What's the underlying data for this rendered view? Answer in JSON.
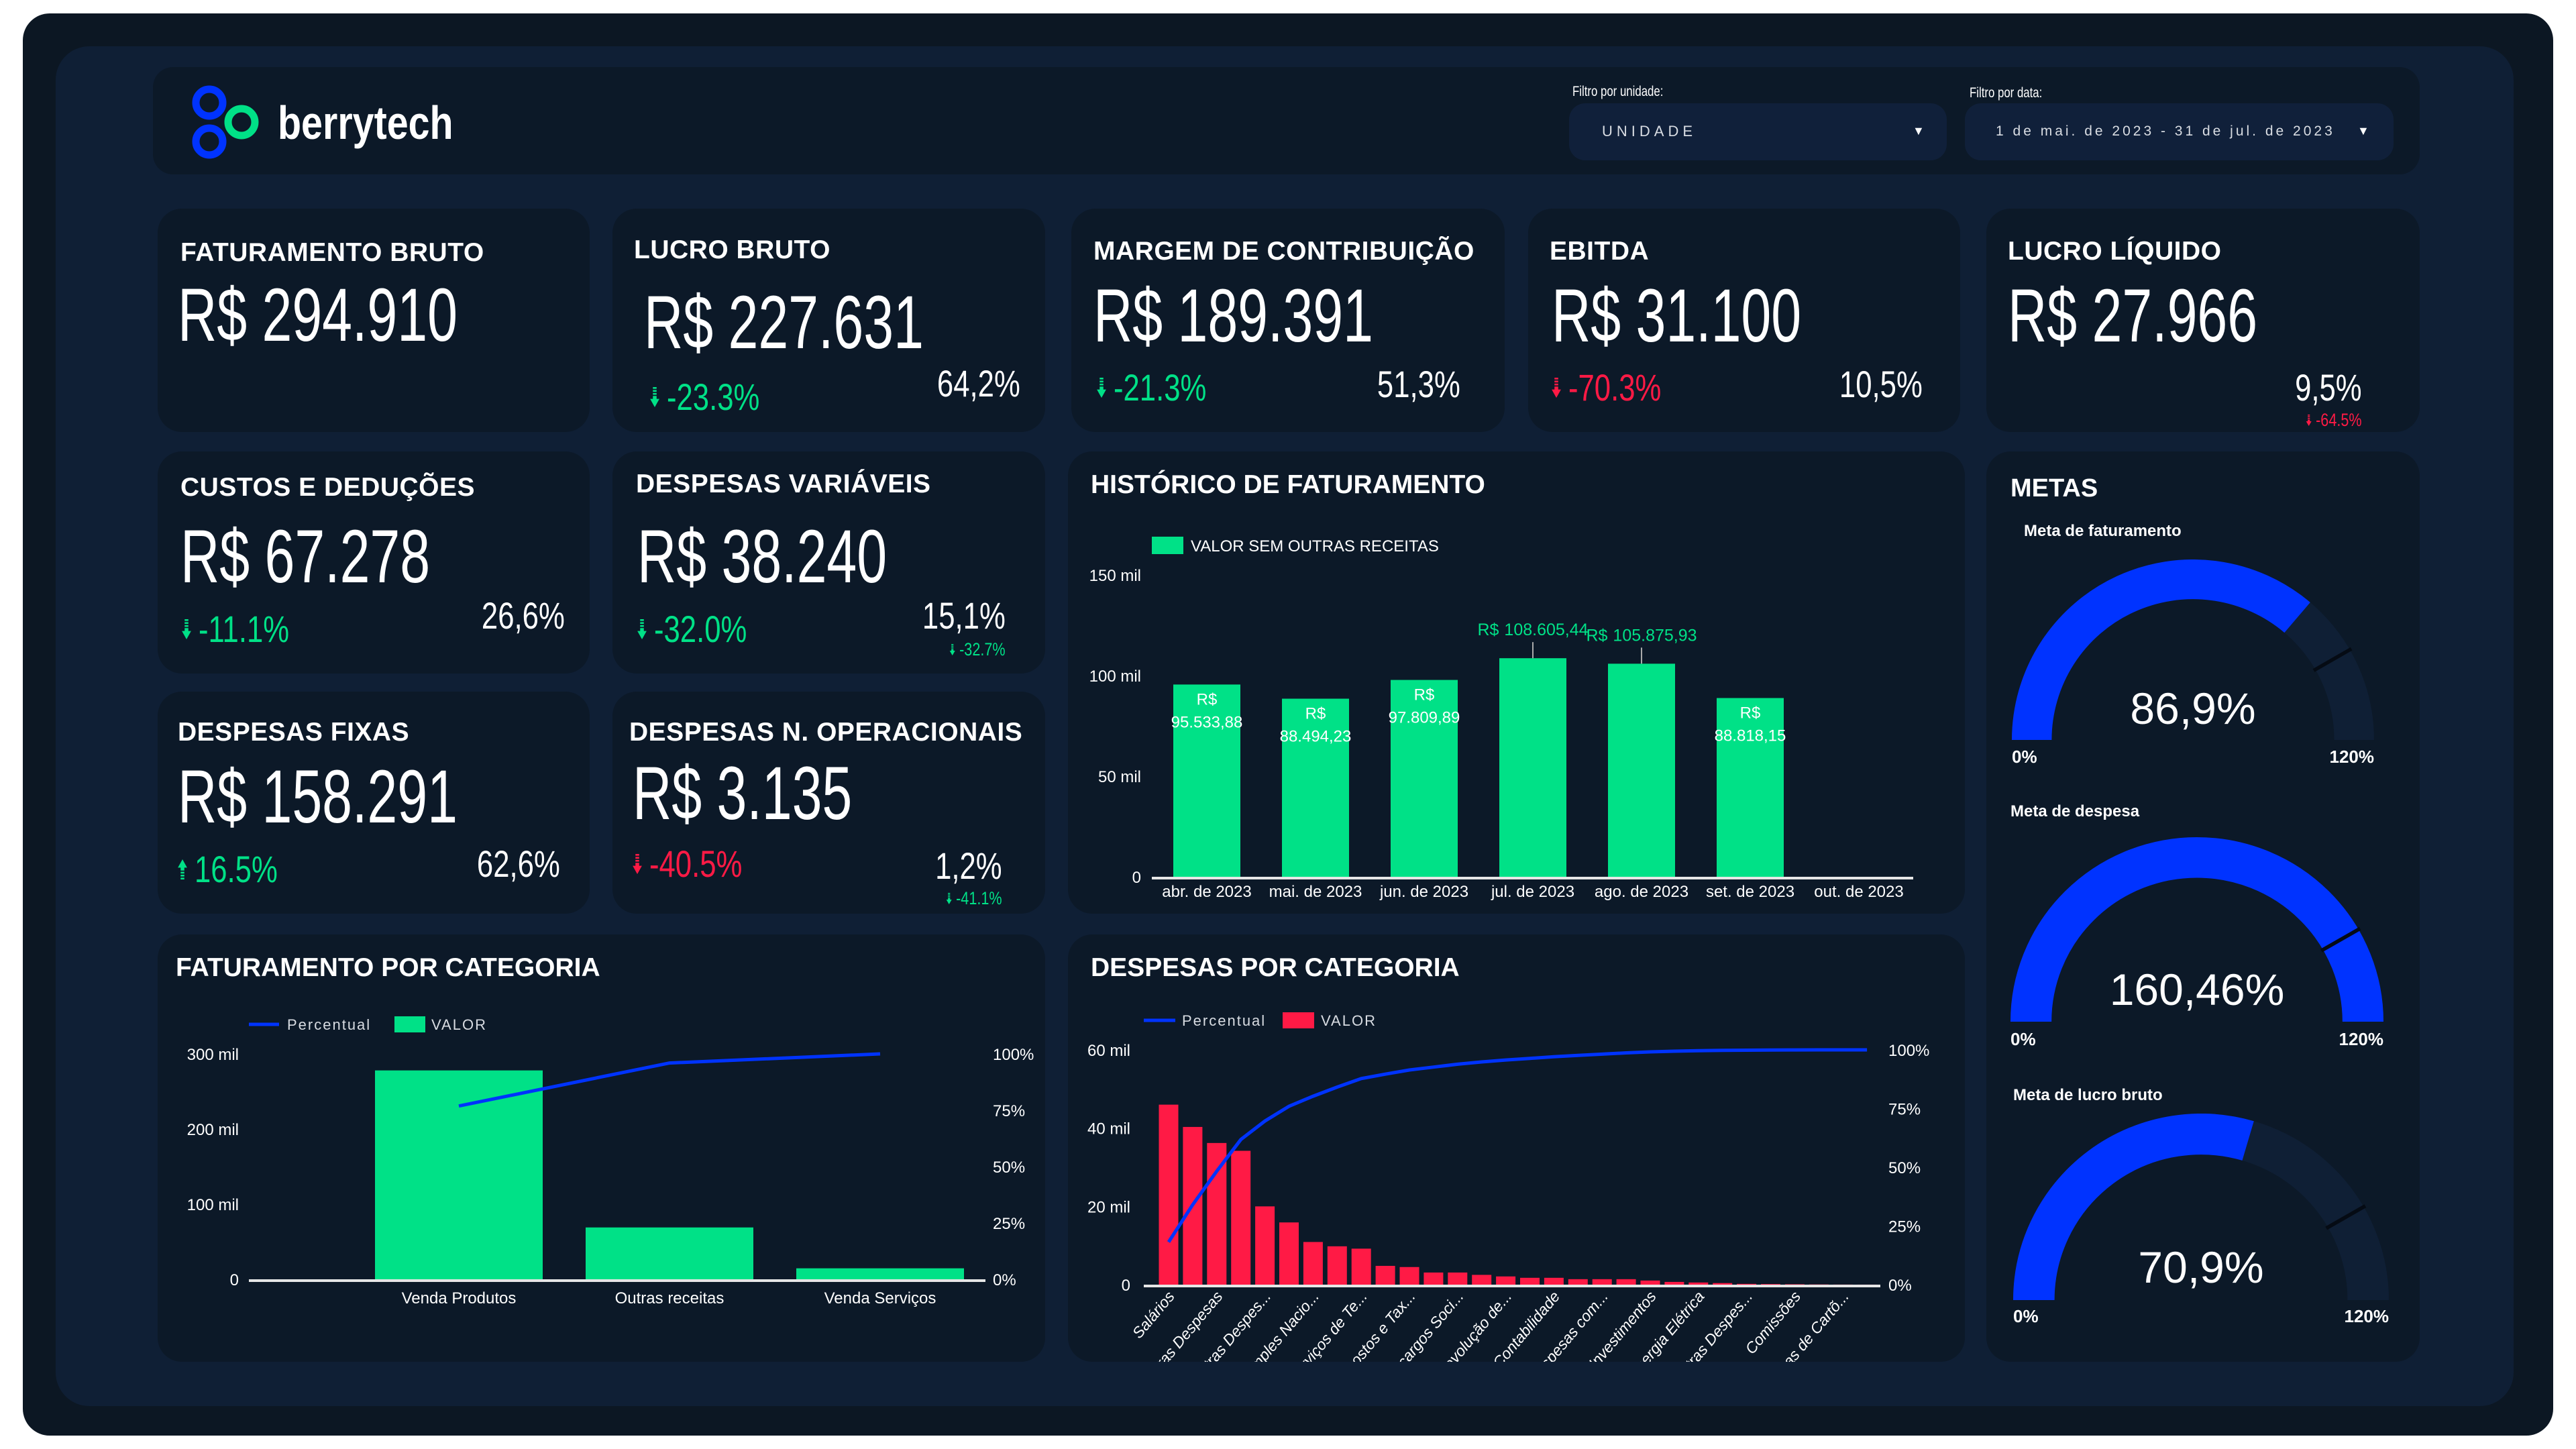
{
  "header": {
    "brand": "berrytech",
    "filters": [
      {
        "label": "Filtro por unidade:",
        "value": "UNIDADE"
      },
      {
        "label": "Filtro por data:",
        "value": "1 de mai. de 2023 - 31 de jul. de 2023"
      }
    ]
  },
  "colors": {
    "green": "#00e187",
    "red": "#ff1a45",
    "blue": "#0033ff",
    "card": "#0c1928",
    "panel": "#0f1f35"
  },
  "kpis": [
    {
      "title": "FATURAMENTO BRUTO",
      "value": "R$ 294.910"
    },
    {
      "title": "LUCRO BRUTO",
      "value": "R$ 227.631",
      "change": {
        "text": "-23.3%",
        "direction": "down",
        "status": "positive"
      },
      "share": "64,2%"
    },
    {
      "title": "MARGEM DE CONTRIBUIÇÃO",
      "value": "R$ 189.391",
      "change": {
        "text": "-21.3%",
        "direction": "down",
        "status": "positive"
      },
      "share": "51,3%"
    },
    {
      "title": "EBITDA",
      "value": "R$ 31.100",
      "change": {
        "text": "-70.3%",
        "direction": "down",
        "status": "negative"
      },
      "share": "10,5%"
    },
    {
      "title": "LUCRO LÍQUIDO",
      "value": "R$ 27.966",
      "share": "9,5%",
      "sub_change": {
        "text": "-64.5%",
        "direction": "down",
        "status": "negative"
      }
    },
    {
      "title": "CUSTOS E DEDUÇÕES",
      "value": "R$ 67.278",
      "change": {
        "text": "-11.1%",
        "direction": "down",
        "status": "positive"
      },
      "share": "26,6%"
    },
    {
      "title": "DESPESAS VARIÁVEIS",
      "value": "R$ 38.240",
      "change": {
        "text": "-32.0%",
        "direction": "down",
        "status": "positive"
      },
      "share": "15,1%",
      "sub_change": {
        "text": "-32.7%",
        "direction": "down",
        "status": "positive"
      }
    },
    {
      "title": "DESPESAS FIXAS",
      "value": "R$ 158.291",
      "change": {
        "text": "16.5%",
        "direction": "up",
        "status": "positive"
      },
      "share": "62,6%"
    },
    {
      "title": "DESPESAS N. OPERACIONAIS",
      "value": "R$ 3.135",
      "change": {
        "text": "-40.5%",
        "direction": "down",
        "status": "negative"
      },
      "share": "1,2%",
      "sub_change": {
        "text": "-41.1%",
        "direction": "down",
        "status": "positive"
      }
    }
  ],
  "chart_data": [
    {
      "type": "bar",
      "title": "HISTÓRICO DE FATURAMENTO",
      "legend": [
        "VALOR SEM OUTRAS RECEITAS"
      ],
      "categories": [
        "abr. de 2023",
        "mai. de 2023",
        "jun. de 2023",
        "jul. de 2023",
        "ago. de 2023",
        "set. de 2023",
        "out. de 2023"
      ],
      "values": [
        95533.88,
        88494.23,
        97809.89,
        108605.44,
        105875.93,
        88818.15,
        0
      ],
      "data_labels": [
        {
          "currency": "R$",
          "amount": "95.533,88"
        },
        {
          "currency": "R$",
          "amount": "88.494,23"
        },
        {
          "currency": "R$",
          "amount": "97.809,89"
        },
        {
          "currency": "R$",
          "amount": "108.605,44"
        },
        {
          "currency": "R$",
          "amount": "105.875,93"
        },
        {
          "currency": "R$",
          "amount": "88.818,15"
        },
        null
      ],
      "ylim": [
        0,
        150000
      ],
      "y_ticks": [
        0,
        50000,
        100000,
        150000
      ],
      "y_tick_labels": [
        "0",
        "50 mil",
        "100 mil",
        "150 mil"
      ],
      "grid": false,
      "legend_position": "top-left"
    },
    {
      "type": "bar",
      "title": "FATURAMENTO POR CATEGORIA",
      "legend": [
        "Percentual",
        "VALOR"
      ],
      "categories": [
        "Venda Produtos",
        "Outras receitas",
        "Venda Serviços"
      ],
      "series": [
        {
          "name": "VALOR",
          "type": "bar",
          "values": [
            278000,
            69000,
            14600
          ]
        },
        {
          "name": "Percentual",
          "type": "line",
          "axis": "right",
          "cumulative_from": "VALOR"
        }
      ],
      "ylim": [
        0,
        300000
      ],
      "y_ticks": [
        0,
        100000,
        200000,
        300000
      ],
      "y_tick_labels": [
        "0",
        "100 mil",
        "200 mil",
        "300 mil"
      ],
      "y2_ticks": [
        0,
        25,
        50,
        75,
        100
      ],
      "y2_tick_labels": [
        "0%",
        "25%",
        "50%",
        "75%",
        "100%"
      ],
      "legend_position": "top-left"
    },
    {
      "type": "bar",
      "title": "DESPESAS POR CATEGORIA",
      "legend": [
        "Percentual",
        "VALOR"
      ],
      "visible_category_labels": [
        "Salários",
        "Outras Despesas",
        "Outras Despes...",
        "Simples Nacio...",
        "Serviços de Te...",
        "Impostos e Tax...",
        "Encargos Soci...",
        "Devolução de...",
        "Contabilidade",
        "Despesas com...",
        "Investimentos",
        "Energia Elétrica",
        "Outras Despes...",
        "Comissões",
        "Taxas de Cartõ..."
      ],
      "series": [
        {
          "name": "VALOR",
          "type": "bar",
          "values": [
            46000,
            40300,
            36200,
            34200,
            20000,
            15900,
            10900,
            9800,
            9200,
            4800,
            4500,
            3100,
            3100,
            2500,
            2100,
            1750,
            1750,
            1400,
            1400,
            1400,
            1050,
            700,
            550,
            400,
            200,
            150,
            100,
            50,
            20,
            10
          ]
        },
        {
          "name": "Percentual",
          "type": "line",
          "axis": "right",
          "cumulative_from": "VALOR"
        }
      ],
      "ylim": [
        0,
        60000
      ],
      "y_ticks": [
        0,
        20000,
        40000,
        60000
      ],
      "y_tick_labels": [
        "0",
        "20 mil",
        "40 mil",
        "60 mil"
      ],
      "y2_ticks": [
        0,
        25,
        50,
        75,
        100
      ],
      "y2_tick_labels": [
        "0%",
        "25%",
        "50%",
        "75%",
        "100%"
      ],
      "legend_position": "top-left"
    }
  ],
  "metas": {
    "title": "METAS",
    "gauges": [
      {
        "label": "Meta de faturamento",
        "value": 86.9,
        "value_text": "86,9%",
        "min_label": "0%",
        "max_label": "120%",
        "max": 120,
        "target": 100
      },
      {
        "label": "Meta de despesa",
        "value": 160.46,
        "value_text": "160,46%",
        "min_label": "0%",
        "max_label": "120%",
        "max": 120,
        "target": 100
      },
      {
        "label": "Meta de lucro bruto",
        "value": 70.9,
        "value_text": "70,9%",
        "min_label": "0%",
        "max_label": "120%",
        "max": 120,
        "target": 100
      }
    ]
  }
}
